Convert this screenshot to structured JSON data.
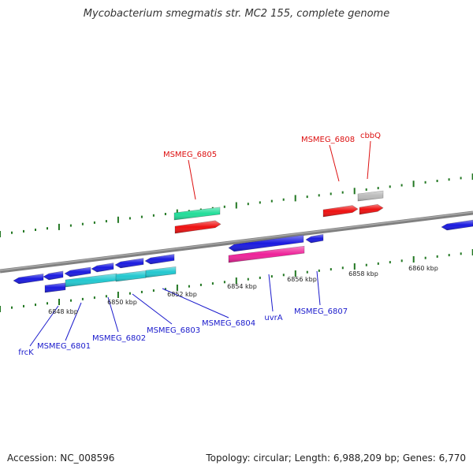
{
  "title": "Mycobacterium smegmatis str. MC2 155, complete genome",
  "footer": {
    "accession": "Accession: NC_008596",
    "summary": "Topology: circular; Length: 6,988,209 bp; Genes: 6,770"
  },
  "scale_labels": [
    "6848 kbp",
    "6850 kbp",
    "6852 kbp",
    "6854 kbp",
    "6856 kbp",
    "6858 kbp",
    "6860 kbp"
  ],
  "gene_labels": {
    "forward": [
      "MSMEG_6805",
      "MSMEG_6808",
      "cbbQ"
    ],
    "reverse": [
      "frcK",
      "MSMEG_6801",
      "MSMEG_6802",
      "MSMEG_6803",
      "MSMEG_6804",
      "uvrA",
      "MSMEG_6807"
    ]
  },
  "colors": {
    "forward_label": "#dd1111",
    "reverse_label": "#1a1acc",
    "backbone": "#808080",
    "tick": "#227722",
    "blue_gene": "#1a1ae0",
    "cyan_gene": "#22c8d0",
    "red_gene": "#ee1111",
    "green_gene": "#22dd99",
    "magenta_gene": "#ee2299",
    "gray_gene": "#bbbbbb"
  }
}
